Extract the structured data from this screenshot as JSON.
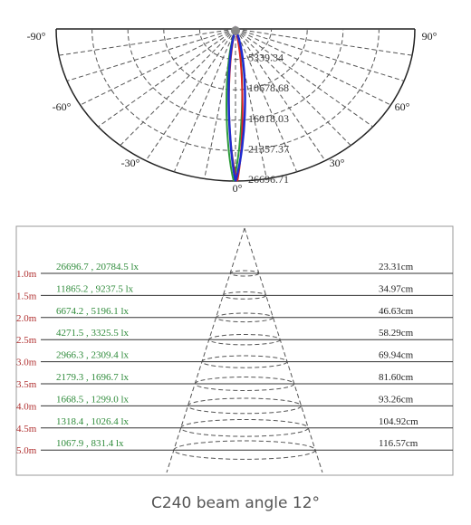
{
  "polar": {
    "angle_labels": [
      "-90°",
      "90°",
      "-60°",
      "60°",
      "-30°",
      "30°",
      "0°"
    ],
    "ring_labels": [
      "5339.34",
      "10678.68",
      "16018.03",
      "21357.37",
      "26696.71"
    ]
  },
  "table": {
    "rows": [
      {
        "distance": "1.0m",
        "illuminance": "26696.7 , 20784.5 lx",
        "diameter": "23.31cm"
      },
      {
        "distance": "1.5m",
        "illuminance": "11865.2 , 9237.5 lx",
        "diameter": "34.97cm"
      },
      {
        "distance": "2.0m",
        "illuminance": "6674.2 , 5196.1 lx",
        "diameter": "46.63cm"
      },
      {
        "distance": "2.5m",
        "illuminance": "4271.5 , 3325.5 lx",
        "diameter": "58.29cm"
      },
      {
        "distance": "3.0m",
        "illuminance": "2966.3 , 2309.4 lx",
        "diameter": "69.94cm"
      },
      {
        "distance": "3.5m",
        "illuminance": "2179.3 , 1696.7 lx",
        "diameter": "81.60cm"
      },
      {
        "distance": "4.0m",
        "illuminance": "1668.5 , 1299.0 lx",
        "diameter": "93.26cm"
      },
      {
        "distance": "4.5m",
        "illuminance": "1318.4 , 1026.4 lx",
        "diameter": "104.92cm"
      },
      {
        "distance": "5.0m",
        "illuminance": "1067.9 , 831.4 lx",
        "diameter": "116.57cm"
      }
    ]
  },
  "caption": "C240 beam angle 12°"
}
